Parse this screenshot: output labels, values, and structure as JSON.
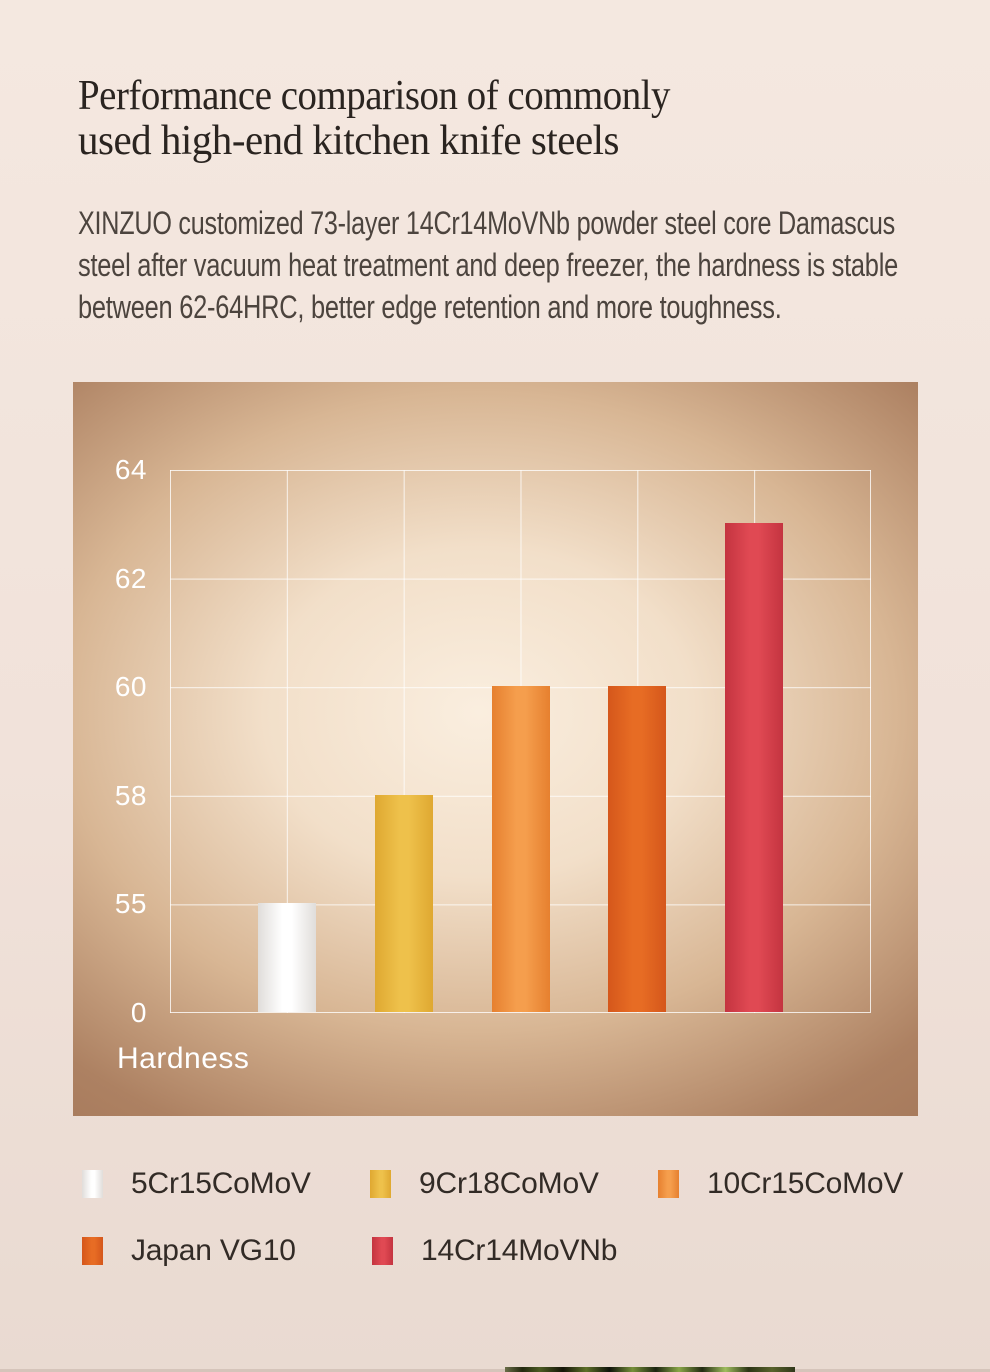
{
  "page": {
    "title_lines": [
      "Performance comparison of commonly",
      "used high-end kitchen knife steels"
    ],
    "paragraph_lines": [
      "XINZUO customized 73-layer 14Cr14MoVNb powder steel core Damascus",
      "steel after vacuum heat treatment and deep freezer, the hardness is stable",
      "between 62-64HRC, better edge retention and more toughness."
    ]
  },
  "chart_data": {
    "type": "bar",
    "title": "",
    "xlabel": "Hardness",
    "ylabel": "",
    "categories": [
      "5Cr15CoMoV",
      "9Cr18CoMoV",
      "10Cr15CoMoV",
      "Japan VG10",
      "14Cr14MoVNb"
    ],
    "values": [
      55,
      58,
      60,
      60,
      63
    ],
    "yticks": [
      0,
      55,
      58,
      60,
      62,
      64
    ],
    "ytick_spacing": "equal",
    "ylim": [
      0,
      64
    ],
    "grid": true,
    "legend_position": "bottom",
    "colors": [
      {
        "center": "#FFFFFF",
        "edge": "#E0DDDA"
      },
      {
        "center": "#EEC14B",
        "edge": "#DFA831"
      },
      {
        "center": "#F59E4D",
        "edge": "#E6802F"
      },
      {
        "center": "#E76C24",
        "edge": "#D5571B"
      },
      {
        "center": "#E04953",
        "edge": "#C43440"
      }
    ]
  },
  "theme": {
    "page_bg_top": "#F4E8E0",
    "page_bg_bottom": "#E9DAD1",
    "panel_center": "#FAEEDF",
    "panel_mid": "#D8B694",
    "panel_edge": "#A5785A",
    "grid_line": "rgba(255,255,255,0.78)",
    "title_color": "#2A2420",
    "body_color": "#4C443E",
    "legend_color": "#322B26",
    "panel_text": "#FFFFFF"
  }
}
